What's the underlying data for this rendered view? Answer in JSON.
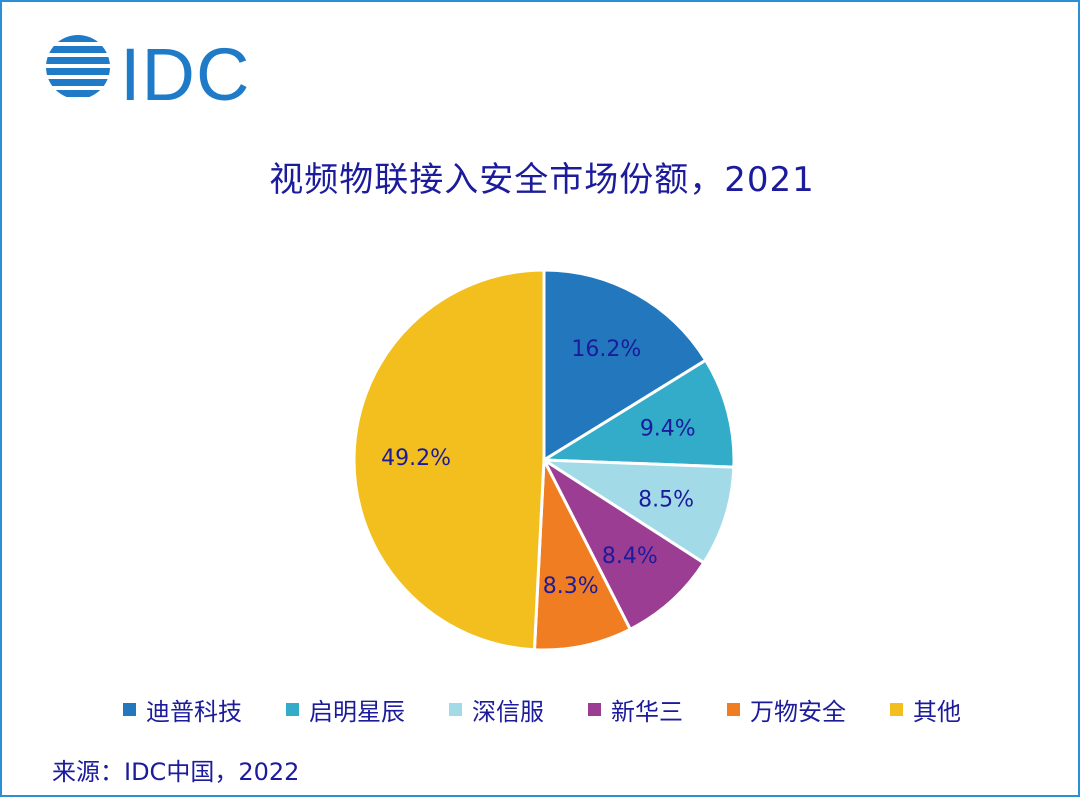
{
  "logo": {
    "text": "IDC",
    "color": "#1f7bc8"
  },
  "chart_data": {
    "type": "pie",
    "title": "视频物联接入安全市场份额，2021",
    "slices": [
      {
        "label": "迪普科技",
        "value": 16.2,
        "value_label": "16.2%",
        "color": "#2277bd"
      },
      {
        "label": "启明星辰",
        "value": 9.4,
        "value_label": "9.4%",
        "color": "#32acc8"
      },
      {
        "label": "深信服",
        "value": 8.5,
        "value_label": "8.5%",
        "color": "#a2dbe7"
      },
      {
        "label": "新华三",
        "value": 8.4,
        "value_label": "8.4%",
        "color": "#9b3d92"
      },
      {
        "label": "万物安全",
        "value": 8.3,
        "value_label": "8.3%",
        "color": "#f07d22"
      },
      {
        "label": "其他",
        "value": 49.2,
        "value_label": "49.2%",
        "color": "#f2bf1f"
      }
    ],
    "legend_position": "bottom",
    "label_color": "#1b1b9c"
  },
  "source": "来源：IDC中国，2022"
}
